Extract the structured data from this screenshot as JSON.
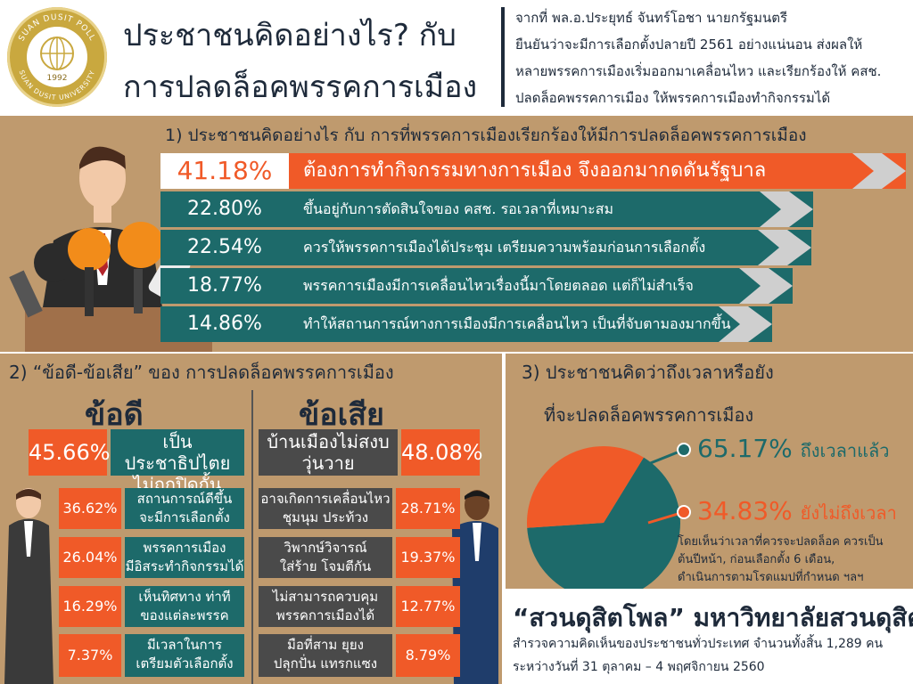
{
  "logo": {
    "ring_text": "SUAN DUSIT POLL",
    "ring_bottom": "SUAN DUSIT UNIVERSITY",
    "year": "1992"
  },
  "header": {
    "title_line1": "ประชาชนคิดอย่างไร? กับ",
    "title_line2": "การปลดล็อคพรรคการเมือง",
    "intro_lines": [
      "จากที่ พล.อ.ประยุทธ์ จันทร์โอชา นายกรัฐมนตรี",
      "ยืนยันว่าจะมีการเลือกตั้งปลายปี 2561 อย่างแน่นอน ส่งผลให้",
      "หลายพรรคการเมืองเริ่มออกมาเคลื่อนไหว และเรียกร้องให้ คสช.",
      "ปลดล็อคพรรคการเมือง ให้พรรคการเมืองทำกิจกรรมได้"
    ]
  },
  "section1": {
    "title": "1)  ประชาชนคิดอย่างไร กับ การที่พรรคการเมืองเรียกร้องให้มีการปลดล็อคพรรคการเมือง"
  },
  "section2": {
    "title": "2) “ข้อดี-ข้อเสีย” ของ การปลดล็อคพรรคการเมือง",
    "pros_heading": "ข้อดี",
    "cons_heading": "ข้อเสีย"
  },
  "section3": {
    "title_line1": "3) ประชาชนคิดว่าถึงเวลาหรือยัง",
    "title_line2": "ที่จะปลดล็อคพรรคการเมือง",
    "note_lines": [
      "โดยเห็นว่าเวลาที่ควรจะปลดล็อค ควรเป็น",
      "ต้นปีหน้า, ก่อนเลือกตั้ง 6 เดือน,",
      "ดำเนินการตามโรดแมปที่กำหนด ฯลฯ"
    ]
  },
  "footer": {
    "title": "“สวนดุสิตโพล” มหาวิทยาลัยสวนดุสิต",
    "line1": "สำรวจความคิดเห็นของประชาชนทั่วประเทศ จำนวนทั้งสิ้น 1,289 คน",
    "line2": "ระหว่างวันที่ 31 ตุลาคม – 4 พฤศจิกายน 2560"
  },
  "colors": {
    "orange": "#f05a28",
    "teal": "#1d6a6a",
    "tan": "#bf9a6e",
    "navy": "#1e2a3a",
    "gray": "#4a4a4a"
  },
  "chart_data": [
    {
      "type": "bar",
      "categories": [
        "ต้องการทำกิจกรรมทางการเมือง จึงออกมากดดันรัฐบาล",
        "ขึ้นอยู่กับการตัดสินใจของ คสช. รอเวลาที่เหมาะสม",
        "ควรให้พรรคการเมืองได้ประชุม เตรียมความพร้อมก่อนการเลือกตั้ง",
        "พรรคการเมืองมีการเคลื่อนไหวเรื่องนี้มาโดยตลอด แต่ก็ไม่สำเร็จ",
        "ทำให้สถานการณ์ทางการเมืองมีการเคลื่อนไหว เป็นที่จับตามองมากขึ้น"
      ],
      "values": [
        41.18,
        22.8,
        22.54,
        18.77,
        14.86
      ],
      "labels": [
        "41.18%",
        "22.80%",
        "22.54%",
        "18.77%",
        "14.86%"
      ]
    },
    {
      "type": "bar",
      "series_pros": {
        "items": [
          "เป็นประชาธิปไตย|ไม่ถูกปิดกั้น",
          "สถานการณ์ดีขึ้น|จะมีการเลือกตั้ง",
          "พรรคการเมือง|มีอิสระทำกิจกรรมได้",
          "เห็นทิศทาง ท่าที|ของแต่ละพรรค",
          "มีเวลาในการ|เตรียมตัวเลือกตั้ง"
        ],
        "values": [
          45.66,
          36.62,
          26.04,
          16.29,
          7.37
        ],
        "labels": [
          "45.66%",
          "36.62%",
          "26.04%",
          "16.29%",
          "7.37%"
        ]
      },
      "series_cons": {
        "items": [
          "บ้านเมืองไม่สงบ|วุ่นวาย",
          "อาจเกิดการเคลื่อนไหว|ชุมนุม ประท้วง",
          "วิพากษ์วิจารณ์|ใส่ร้าย โจมตีกัน",
          "ไม่สามารถควบคุม|พรรคการเมืองได้",
          "มือที่สาม ยุยง|ปลุกปั่น แทรกแซง"
        ],
        "values": [
          48.08,
          28.71,
          19.37,
          12.77,
          8.79
        ],
        "labels": [
          "48.08%",
          "28.71%",
          "19.37%",
          "12.77%",
          "8.79%"
        ]
      }
    },
    {
      "type": "pie",
      "categories": [
        "ถึงเวลาแล้ว",
        "ยังไม่ถึงเวลา"
      ],
      "values": [
        65.17,
        34.83
      ],
      "labels": [
        "65.17%",
        "34.83%"
      ],
      "colors": [
        "#1d6a6a",
        "#f05a28"
      ]
    }
  ]
}
